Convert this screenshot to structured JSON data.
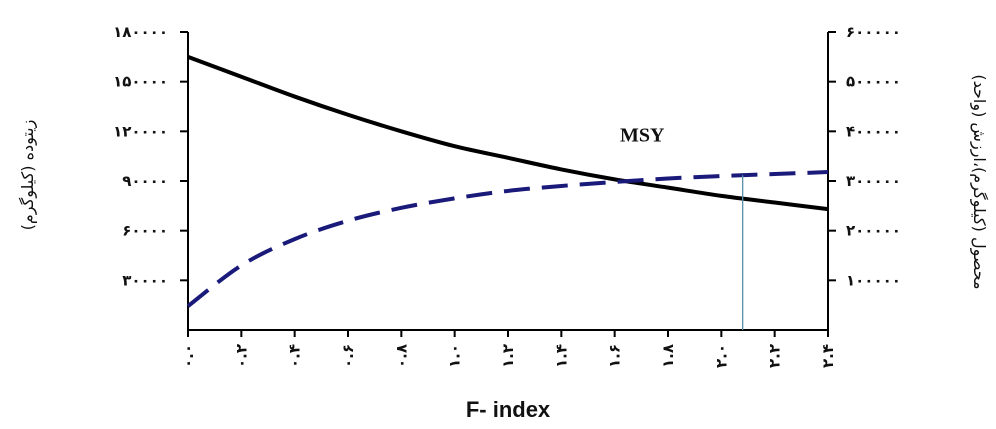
{
  "chart_data": {
    "type": "line",
    "xlabel": "F- index",
    "ylabel_left": "(زیتوده (کیلوگرم",
    "ylabel_right": "(محصول (کیلوگرم)،ارزش (واحد",
    "x": [
      0.0,
      0.2,
      0.4,
      0.6,
      0.8,
      1.0,
      1.2,
      1.4,
      1.6,
      1.8,
      2.0,
      2.2,
      2.4
    ],
    "x_tick_labels": [
      "۰.۰",
      "۰.۲",
      "۰.۴",
      "۰.۶",
      "۰.۸",
      "۱.۰",
      "۱.۲",
      "۱.۴",
      "۱.۶",
      "۱.۸",
      "۲.۰",
      "۲.۲",
      "۲.۴"
    ],
    "xlim": [
      0,
      2.4
    ],
    "ylim_left": [
      0,
      180000
    ],
    "ylim_right": [
      0,
      600000
    ],
    "y_left_ticks": [
      30000,
      60000,
      90000,
      120000,
      150000,
      180000
    ],
    "y_left_tick_labels": [
      "۳۰۰۰۰",
      "۶۰۰۰۰",
      "۹۰۰۰۰",
      "۱۲۰۰۰۰",
      "۱۵۰۰۰۰",
      "۱۸۰۰۰۰"
    ],
    "y_right_ticks": [
      100000,
      200000,
      300000,
      400000,
      500000,
      600000
    ],
    "y_right_tick_labels": [
      "۱۰۰۰۰۰",
      "۲۰۰۰۰۰",
      "۳۰۰۰۰۰",
      "۴۰۰۰۰۰",
      "۵۰۰۰۰۰",
      "۶۰۰۰۰۰"
    ],
    "series": [
      {
        "axis": "left",
        "style": "solid",
        "color": "#000000",
        "values": [
          165000,
          153000,
          141000,
          130000,
          120000,
          111000,
          104000,
          97000,
          91000,
          86000,
          81000,
          77000,
          73000
        ]
      },
      {
        "axis": "right",
        "style": "dashed",
        "color": "#1a1a7a",
        "values": [
          48000,
          130000,
          183000,
          220000,
          246000,
          265000,
          280000,
          290000,
          298000,
          305000,
          310000,
          314000,
          318000
        ]
      }
    ],
    "annotations": [
      {
        "text": "MSY",
        "x": 1.62,
        "y_left": 118000
      }
    ],
    "msy_x": 2.08
  }
}
